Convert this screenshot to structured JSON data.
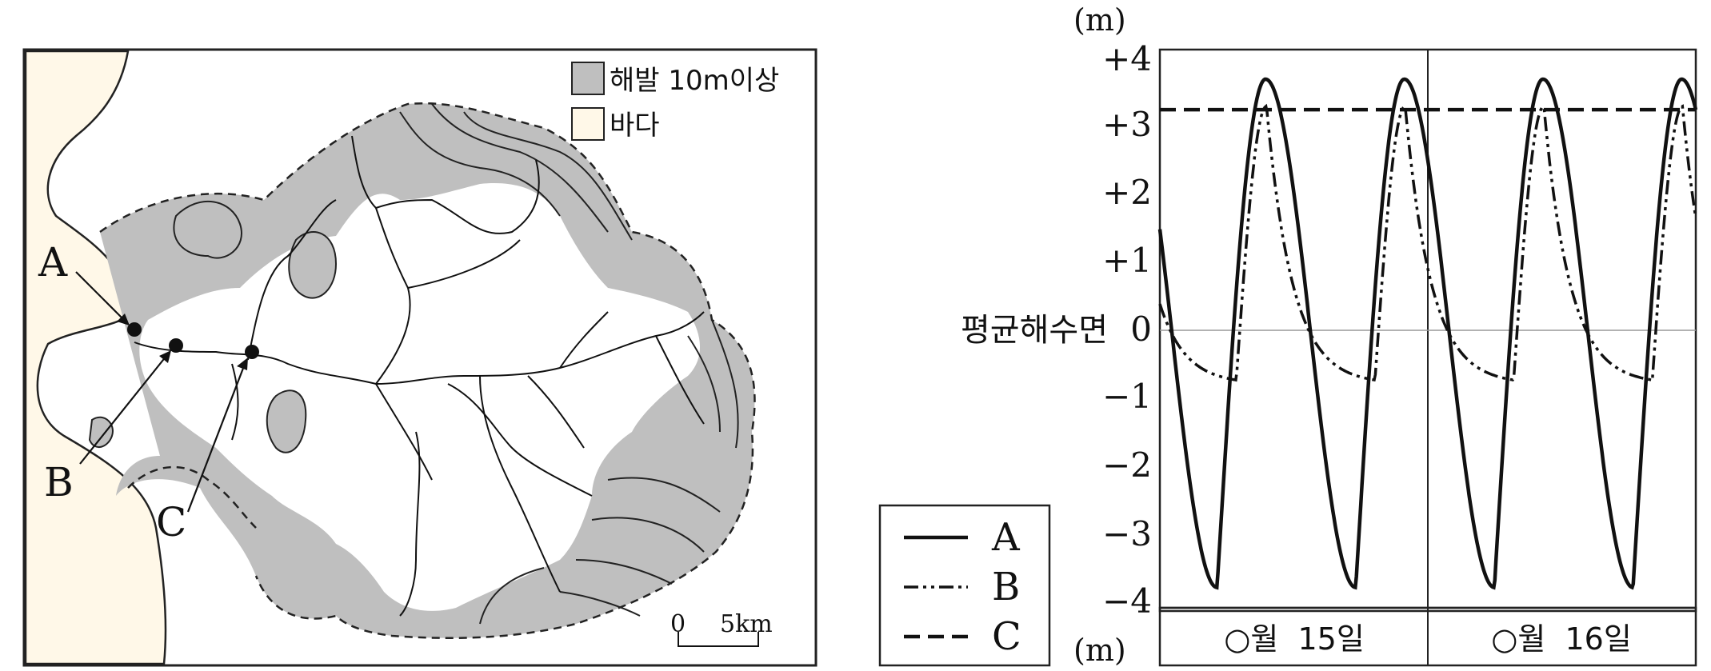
{
  "map": {
    "legend_items": [
      {
        "swatch": "#bfbfbf",
        "label": "해발 10m이상"
      },
      {
        "swatch": "#fff8e8",
        "label": "바다"
      }
    ],
    "point_labels": [
      "A",
      "B",
      "C"
    ],
    "scale_zero": "0",
    "scale_distance": "5km"
  },
  "chart": {
    "unit_top": "(m)",
    "unit_bottom": "(m)",
    "y_tick_labels": [
      "+4",
      "+3",
      "+2",
      "+1",
      "0",
      "−1",
      "−2",
      "−3",
      "−4"
    ],
    "zero_line_label": "평균해수면",
    "day_labels": [
      "○월  15일",
      "○월  16일"
    ],
    "legend": [
      {
        "dash": "solid",
        "label": "A"
      },
      {
        "dash": "dash-dot-dot",
        "label": "B"
      },
      {
        "dash": "dashed",
        "label": "C"
      }
    ]
  },
  "chart_data": {
    "type": "line",
    "x_unit": "hours",
    "ylim": [
      -4,
      4
    ],
    "series": [
      {
        "name": "A",
        "level_range": [
          -3.7,
          3.8
        ],
        "peak_count": 4
      },
      {
        "name": "B",
        "level_range": [
          -0.7,
          3.4
        ],
        "peak_count": 4
      },
      {
        "name": "C",
        "value": 3.35
      }
    ]
  }
}
